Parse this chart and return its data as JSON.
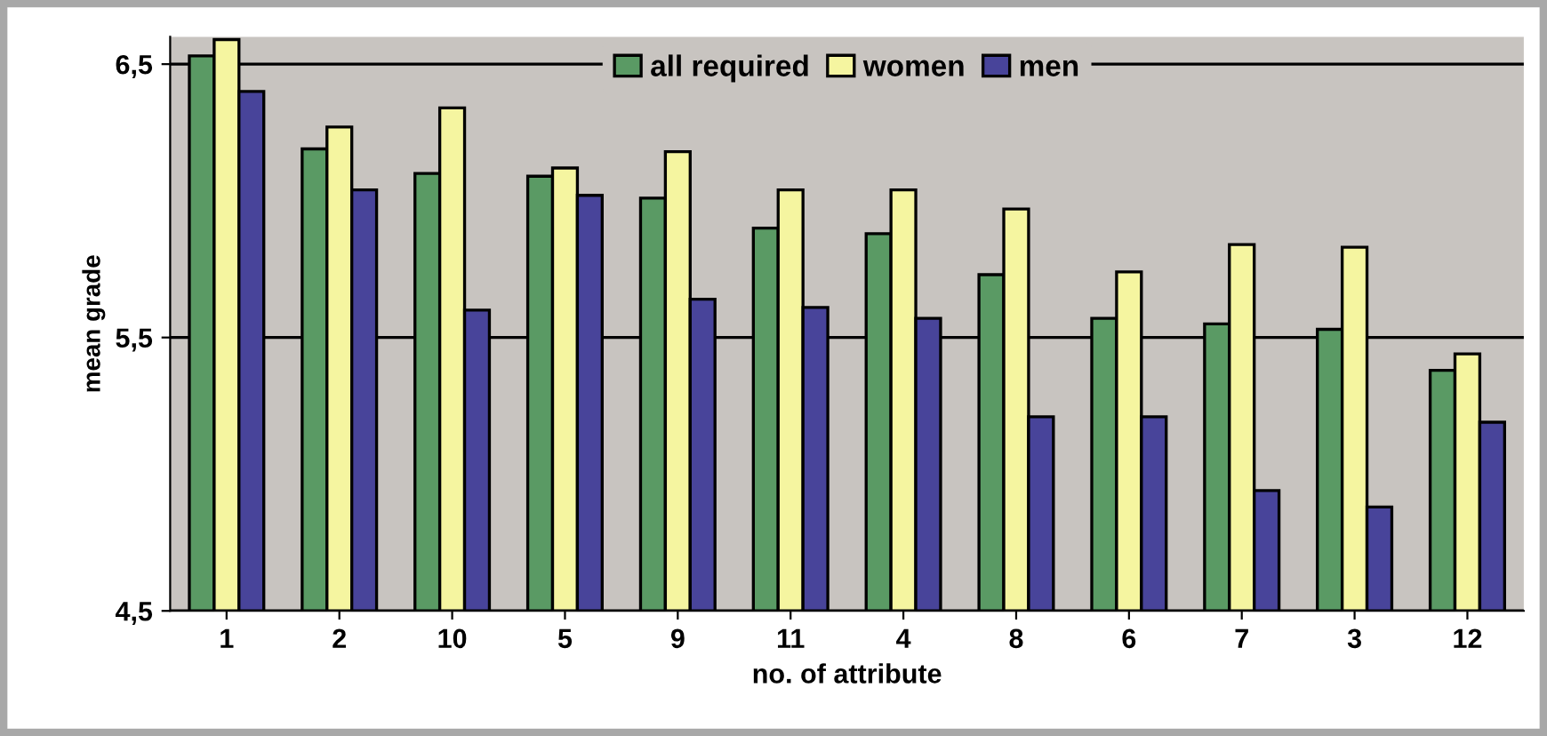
{
  "chart_data": {
    "type": "bar",
    "xlabel": "no. of attribute",
    "ylabel": "mean grade",
    "categories": [
      "1",
      "2",
      "10",
      "5",
      "9",
      "11",
      "4",
      "8",
      "6",
      "7",
      "3",
      "12"
    ],
    "series": [
      {
        "name": "all required",
        "color": "#5a9a64",
        "values": [
          6.53,
          6.19,
          6.1,
          6.09,
          6.01,
          5.9,
          5.88,
          5.73,
          5.57,
          5.55,
          5.53,
          5.38
        ]
      },
      {
        "name": "women",
        "color": "#f5f5a0",
        "values": [
          6.59,
          6.27,
          6.34,
          6.12,
          6.18,
          6.04,
          6.04,
          5.97,
          5.74,
          5.84,
          5.83,
          5.44
        ]
      },
      {
        "name": "men",
        "color": "#48449a",
        "values": [
          6.4,
          6.04,
          5.6,
          6.02,
          5.64,
          5.61,
          5.57,
          5.21,
          5.21,
          4.94,
          4.88,
          5.19
        ]
      }
    ],
    "ylim": [
      4.5,
      6.6
    ],
    "yticks": [
      {
        "value": 4.5,
        "label": "4,5"
      },
      {
        "value": 5.5,
        "label": "5,5"
      },
      {
        "value": 6.5,
        "label": "6,5"
      }
    ],
    "grid": "y",
    "legend": "top"
  }
}
